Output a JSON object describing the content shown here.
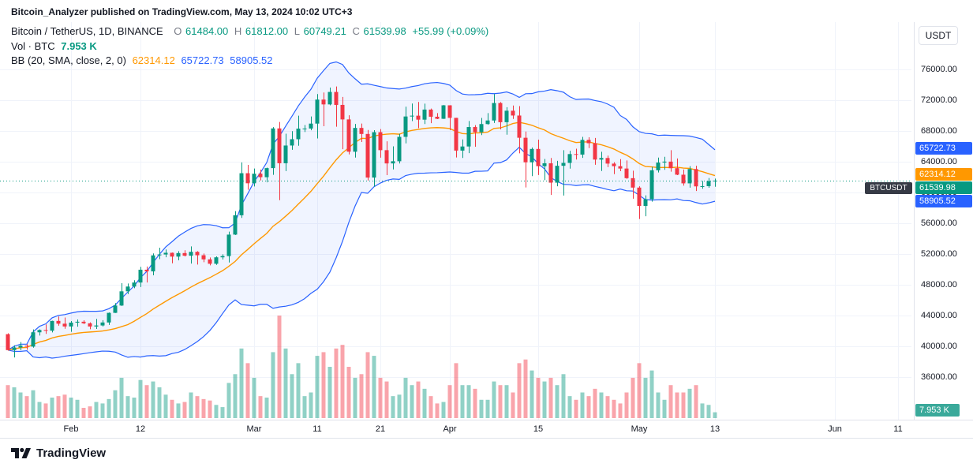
{
  "header": {
    "attribution": "Bitcoin_Analyzer published on TradingView.com, May 13, 2024 10:02 UTC+3"
  },
  "toolbar": {
    "currency_button": "USDT"
  },
  "legend": {
    "title": "Bitcoin / TetherUS, 1D, BINANCE",
    "ohlc": {
      "o_label": "O",
      "o": "61484.00",
      "h_label": "H",
      "h": "61812.00",
      "l_label": "L",
      "l": "60749.21",
      "c_label": "C",
      "c": "61539.98",
      "change": "+55.99 (+0.09%)"
    },
    "volume_row": {
      "label": "Vol · BTC",
      "value": "7.953 K"
    },
    "bb_row": {
      "label": "BB (20, SMA, close, 2, 0)",
      "basis": "62314.12",
      "upper": "65722.73",
      "lower": "58905.52"
    }
  },
  "price_line": {
    "symbol": "BTCUSDT",
    "value": 61539.98,
    "label": "61539.98",
    "tag_bg": "#363a45"
  },
  "volume_badge": {
    "label": "7.953 K",
    "bg": "#3aa99a"
  },
  "price_scale": {
    "ticks": [
      {
        "label": "76000.00",
        "value": 76000
      },
      {
        "label": "72000.00",
        "value": 72000
      },
      {
        "label": "68000.00",
        "value": 68000
      },
      {
        "label": "64000.00",
        "value": 64000
      },
      {
        "label": "60000.00",
        "value": 60000
      },
      {
        "label": "56000.00",
        "value": 56000
      },
      {
        "label": "52000.00",
        "value": 52000
      },
      {
        "label": "48000.00",
        "value": 48000
      },
      {
        "label": "44000.00",
        "value": 44000
      },
      {
        "label": "40000.00",
        "value": 40000
      },
      {
        "label": "36000.00",
        "value": 36000
      }
    ],
    "badges": [
      {
        "name": "bb-upper",
        "label": "65722.73",
        "value": 65722.73,
        "bg": "#2962ff"
      },
      {
        "name": "bb-basis",
        "label": "62314.12",
        "value": 62314.12,
        "bg": "#ff9800"
      },
      {
        "name": "last-price",
        "label": "61539.98",
        "value": 61539.98,
        "bg": "#089981"
      },
      {
        "name": "bb-lower",
        "label": "58905.52",
        "value": 58905.52,
        "bg": "#2962ff"
      }
    ]
  },
  "time_scale": {
    "ticks": [
      {
        "label": "Feb",
        "day": 10,
        "kind": "month"
      },
      {
        "label": "12",
        "day": 21,
        "kind": "day"
      },
      {
        "label": "Mar",
        "day": 39,
        "kind": "month"
      },
      {
        "label": "11",
        "day": 49,
        "kind": "day"
      },
      {
        "label": "21",
        "day": 59,
        "kind": "day"
      },
      {
        "label": "Apr",
        "day": 70,
        "kind": "month"
      },
      {
        "label": "15",
        "day": 84,
        "kind": "day"
      },
      {
        "label": "May",
        "day": 100,
        "kind": "month"
      },
      {
        "label": "13",
        "day": 112,
        "kind": "day"
      },
      {
        "label": "Jun",
        "day": 131,
        "kind": "month"
      },
      {
        "label": "11",
        "day": 141,
        "kind": "day"
      }
    ]
  },
  "footer": {
    "brand": "TradingView"
  },
  "colors": {
    "up": "#089981",
    "down": "#f23645",
    "vol_up": "rgba(8,153,129,0.45)",
    "vol_down": "rgba(242,54,69,0.45)",
    "bb_band": "#2962ff",
    "bb_basis": "#ff9800",
    "bb_fill": "rgba(41,98,255,0.07)",
    "grid": "#f0f3fa",
    "axis_text": "#131722"
  },
  "chart_data": {
    "type": "candlestick",
    "title": "Bitcoin / TetherUS, 1D, BINANCE",
    "symbol": "BTCUSDT",
    "exchange": "BINANCE",
    "interval": "1D",
    "volume_unit": "BTC",
    "start_date": "2024-01-22",
    "ylim": [
      36000,
      76000
    ],
    "grid": true,
    "indicators": {
      "bollinger": {
        "period": 20,
        "source": "close",
        "stddev": 2,
        "basis": 62314.12,
        "upper": 65722.73,
        "lower": 58905.52
      },
      "last": {
        "open": 61484.0,
        "high": 61812.0,
        "low": 60749.21,
        "close": 61539.98,
        "change": 55.99,
        "change_pct": 0.09,
        "volume_k": 7.953
      }
    },
    "candles_format": [
      "open",
      "high",
      "low",
      "close",
      "volume_k_btc"
    ],
    "candles": [
      [
        41580,
        41689,
        39431,
        39507,
        45
      ],
      [
        39507,
        40127,
        38555,
        39845,
        42
      ],
      [
        39845,
        40555,
        39484,
        40077,
        35
      ],
      [
        40077,
        40300,
        39550,
        39961,
        30
      ],
      [
        39961,
        42196,
        39822,
        41823,
        38
      ],
      [
        41823,
        42200,
        41394,
        42120,
        22
      ],
      [
        42120,
        42842,
        41620,
        42031,
        20
      ],
      [
        42031,
        43333,
        41804,
        43300,
        28
      ],
      [
        43300,
        43882,
        42683,
        42941,
        30
      ],
      [
        42941,
        43745,
        42276,
        42580,
        32
      ],
      [
        42580,
        43285,
        41884,
        43082,
        28
      ],
      [
        43082,
        43488,
        42546,
        43194,
        25
      ],
      [
        43194,
        43380,
        42880,
        42993,
        14
      ],
      [
        42993,
        43120,
        42222,
        42577,
        16
      ],
      [
        42577,
        43563,
        42258,
        42709,
        22
      ],
      [
        42709,
        43399,
        42574,
        43098,
        20
      ],
      [
        43098,
        44396,
        42788,
        44349,
        26
      ],
      [
        44349,
        45614,
        44336,
        45301,
        38
      ],
      [
        45301,
        48200,
        45242,
        47147,
        55
      ],
      [
        47147,
        48170,
        46800,
        47771,
        30
      ],
      [
        47771,
        48592,
        47557,
        48293,
        28
      ],
      [
        48293,
        50334,
        47710,
        49958,
        52
      ],
      [
        49958,
        50368,
        48300,
        49742,
        45
      ],
      [
        49742,
        52079,
        49225,
        51826,
        50
      ],
      [
        51826,
        52816,
        51339,
        51938,
        42
      ],
      [
        51938,
        52585,
        51571,
        52160,
        32
      ],
      [
        52160,
        52191,
        50791,
        51662,
        25
      ],
      [
        51662,
        52377,
        51174,
        52122,
        20
      ],
      [
        52122,
        52488,
        51677,
        51779,
        22
      ],
      [
        51779,
        52985,
        50760,
        52284,
        35
      ],
      [
        52284,
        52368,
        50625,
        51839,
        30
      ],
      [
        51839,
        52058,
        50940,
        51304,
        26
      ],
      [
        51304,
        51549,
        50521,
        50731,
        24
      ],
      [
        50731,
        51698,
        50585,
        51571,
        18
      ],
      [
        51571,
        51958,
        51279,
        51733,
        15
      ],
      [
        51733,
        54910,
        50901,
        54522,
        48
      ],
      [
        54522,
        57580,
        54476,
        57037,
        60
      ],
      [
        57037,
        63913,
        56691,
        62504,
        95
      ],
      [
        62504,
        63585,
        60364,
        61198,
        75
      ],
      [
        61198,
        63114,
        60777,
        62440,
        55
      ],
      [
        62440,
        62977,
        61561,
        61987,
        30
      ],
      [
        61987,
        63231,
        61320,
        63168,
        28
      ],
      [
        63168,
        68499,
        62300,
        68330,
        90
      ],
      [
        68330,
        69170,
        59005,
        63801,
        140
      ],
      [
        63801,
        67641,
        62779,
        66106,
        95
      ],
      [
        66106,
        67980,
        65551,
        66927,
        60
      ],
      [
        66927,
        69990,
        66082,
        68300,
        75
      ],
      [
        68300,
        68767,
        67861,
        68313,
        30
      ],
      [
        68313,
        69887,
        68094,
        68955,
        35
      ],
      [
        68955,
        72800,
        67024,
        72078,
        85
      ],
      [
        72078,
        73000,
        68620,
        71452,
        90
      ],
      [
        71452,
        73637,
        71334,
        73072,
        70
      ],
      [
        73072,
        73777,
        68555,
        71388,
        95
      ],
      [
        71388,
        72419,
        65630,
        69499,
        100
      ],
      [
        69499,
        70043,
        64955,
        65300,
        70
      ],
      [
        65300,
        68904,
        64533,
        68393,
        55
      ],
      [
        68393,
        68956,
        66565,
        67609,
        60
      ],
      [
        67609,
        68124,
        61555,
        61937,
        90
      ],
      [
        61937,
        68100,
        60775,
        67840,
        85
      ],
      [
        67840,
        68240,
        64529,
        65501,
        55
      ],
      [
        65501,
        66649,
        62260,
        63778,
        50
      ],
      [
        63778,
        65999,
        63000,
        64062,
        30
      ],
      [
        64062,
        67628,
        63772,
        67234,
        32
      ],
      [
        67234,
        71150,
        66385,
        69880,
        55
      ],
      [
        69880,
        71561,
        69282,
        69988,
        45
      ],
      [
        69988,
        71769,
        68359,
        69469,
        50
      ],
      [
        69469,
        71552,
        68903,
        70780,
        40
      ],
      [
        70780,
        70916,
        69009,
        69850,
        30
      ],
      [
        69850,
        70321,
        69540,
        69582,
        20
      ],
      [
        69582,
        71366,
        69562,
        71333,
        22
      ],
      [
        71333,
        71342,
        68110,
        69702,
        45
      ],
      [
        69702,
        69708,
        64550,
        65446,
        75
      ],
      [
        65446,
        66903,
        64493,
        65980,
        45
      ],
      [
        65980,
        69291,
        65113,
        68508,
        45
      ],
      [
        68508,
        68756,
        65952,
        67837,
        40
      ],
      [
        67837,
        69692,
        67465,
        68896,
        25
      ],
      [
        68896,
        70326,
        68813,
        69362,
        25
      ],
      [
        69362,
        72797,
        69043,
        71631,
        50
      ],
      [
        71631,
        71758,
        68210,
        69139,
        45
      ],
      [
        69139,
        71093,
        67518,
        70631,
        45
      ],
      [
        70631,
        71305,
        69567,
        70006,
        35
      ],
      [
        70006,
        71227,
        65086,
        67116,
        75
      ],
      [
        67116,
        67929,
        60660,
        63924,
        80
      ],
      [
        63924,
        65840,
        62134,
        65661,
        65
      ],
      [
        65661,
        66867,
        62274,
        63419,
        55
      ],
      [
        63419,
        64365,
        61600,
        63793,
        50
      ],
      [
        63793,
        64486,
        59678,
        61277,
        55
      ],
      [
        61277,
        64117,
        60803,
        63470,
        45
      ],
      [
        63470,
        65500,
        59600,
        63843,
        60
      ],
      [
        63843,
        65419,
        63103,
        64994,
        30
      ],
      [
        64994,
        65695,
        64277,
        64926,
        25
      ],
      [
        64926,
        67232,
        64500,
        66837,
        35
      ],
      [
        66837,
        67184,
        65765,
        66407,
        30
      ],
      [
        66407,
        67085,
        63606,
        64276,
        40
      ],
      [
        64276,
        65298,
        62794,
        64481,
        35
      ],
      [
        64481,
        64789,
        63294,
        63755,
        30
      ],
      [
        63755,
        63940,
        62387,
        63419,
        25
      ],
      [
        63419,
        64336,
        62775,
        63113,
        20
      ],
      [
        63113,
        64173,
        61765,
        61862,
        35
      ],
      [
        61862,
        62830,
        59191,
        60636,
        55
      ],
      [
        60636,
        60808,
        56552,
        58254,
        75
      ],
      [
        58254,
        59625,
        56911,
        59123,
        55
      ],
      [
        59123,
        63333,
        58813,
        62889,
        65
      ],
      [
        62889,
        64540,
        62598,
        63892,
        35
      ],
      [
        63892,
        64639,
        62953,
        64012,
        25
      ],
      [
        64012,
        65500,
        62711,
        63163,
        45
      ],
      [
        63163,
        64420,
        62261,
        62312,
        35
      ],
      [
        62312,
        62986,
        60888,
        61187,
        35
      ],
      [
        61187,
        63422,
        60630,
        63049,
        40
      ],
      [
        63049,
        63469,
        60191,
        60792,
        45
      ],
      [
        60792,
        61515,
        60487,
        60825,
        20
      ],
      [
        60825,
        61888,
        60610,
        61484,
        18
      ],
      [
        61484,
        61812,
        60749.21,
        61539.98,
        7.953
      ]
    ]
  }
}
